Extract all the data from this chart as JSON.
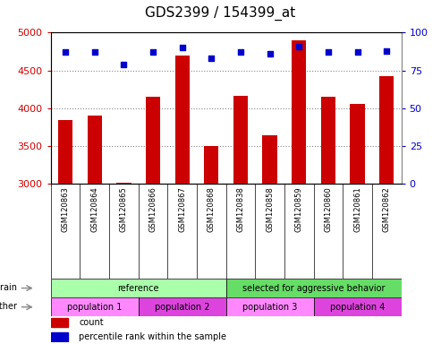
{
  "title": "GDS2399 / 154399_at",
  "samples": [
    "GSM120863",
    "GSM120864",
    "GSM120865",
    "GSM120866",
    "GSM120867",
    "GSM120868",
    "GSM120838",
    "GSM120858",
    "GSM120859",
    "GSM120860",
    "GSM120861",
    "GSM120862"
  ],
  "counts": [
    3840,
    3910,
    3020,
    4150,
    4700,
    3500,
    4170,
    3650,
    4900,
    4150,
    4060,
    4420
  ],
  "percentile_ranks": [
    87,
    87,
    79,
    87,
    90,
    83,
    87,
    86,
    91,
    87,
    87,
    88
  ],
  "ylim_left": [
    3000,
    5000
  ],
  "ylim_right": [
    0,
    100
  ],
  "yticks_left": [
    3000,
    3500,
    4000,
    4500,
    5000
  ],
  "yticks_right": [
    0,
    25,
    50,
    75,
    100
  ],
  "bar_color": "#cc0000",
  "dot_color": "#0000cc",
  "strain_groups": [
    {
      "label": "reference",
      "start": 0,
      "end": 6,
      "color": "#aaffaa"
    },
    {
      "label": "selected for aggressive behavior",
      "start": 6,
      "end": 12,
      "color": "#66dd66"
    }
  ],
  "other_groups": [
    {
      "label": "population 1",
      "start": 0,
      "end": 3,
      "color": "#ff88ff"
    },
    {
      "label": "population 2",
      "start": 3,
      "end": 6,
      "color": "#dd44dd"
    },
    {
      "label": "population 3",
      "start": 6,
      "end": 9,
      "color": "#ff88ff"
    },
    {
      "label": "population 4",
      "start": 9,
      "end": 12,
      "color": "#dd44dd"
    }
  ],
  "legend_count_color": "#cc0000",
  "legend_percentile_color": "#0000cc",
  "bg_color": "#ffffff",
  "plot_bg_color": "#ffffff",
  "grid_color": "#888888",
  "tick_label_color_left": "#cc0000",
  "tick_label_color_right": "#0000cc",
  "title_fontsize": 11,
  "tick_fontsize": 8,
  "annotation_fontsize": 7,
  "bar_width": 0.5
}
